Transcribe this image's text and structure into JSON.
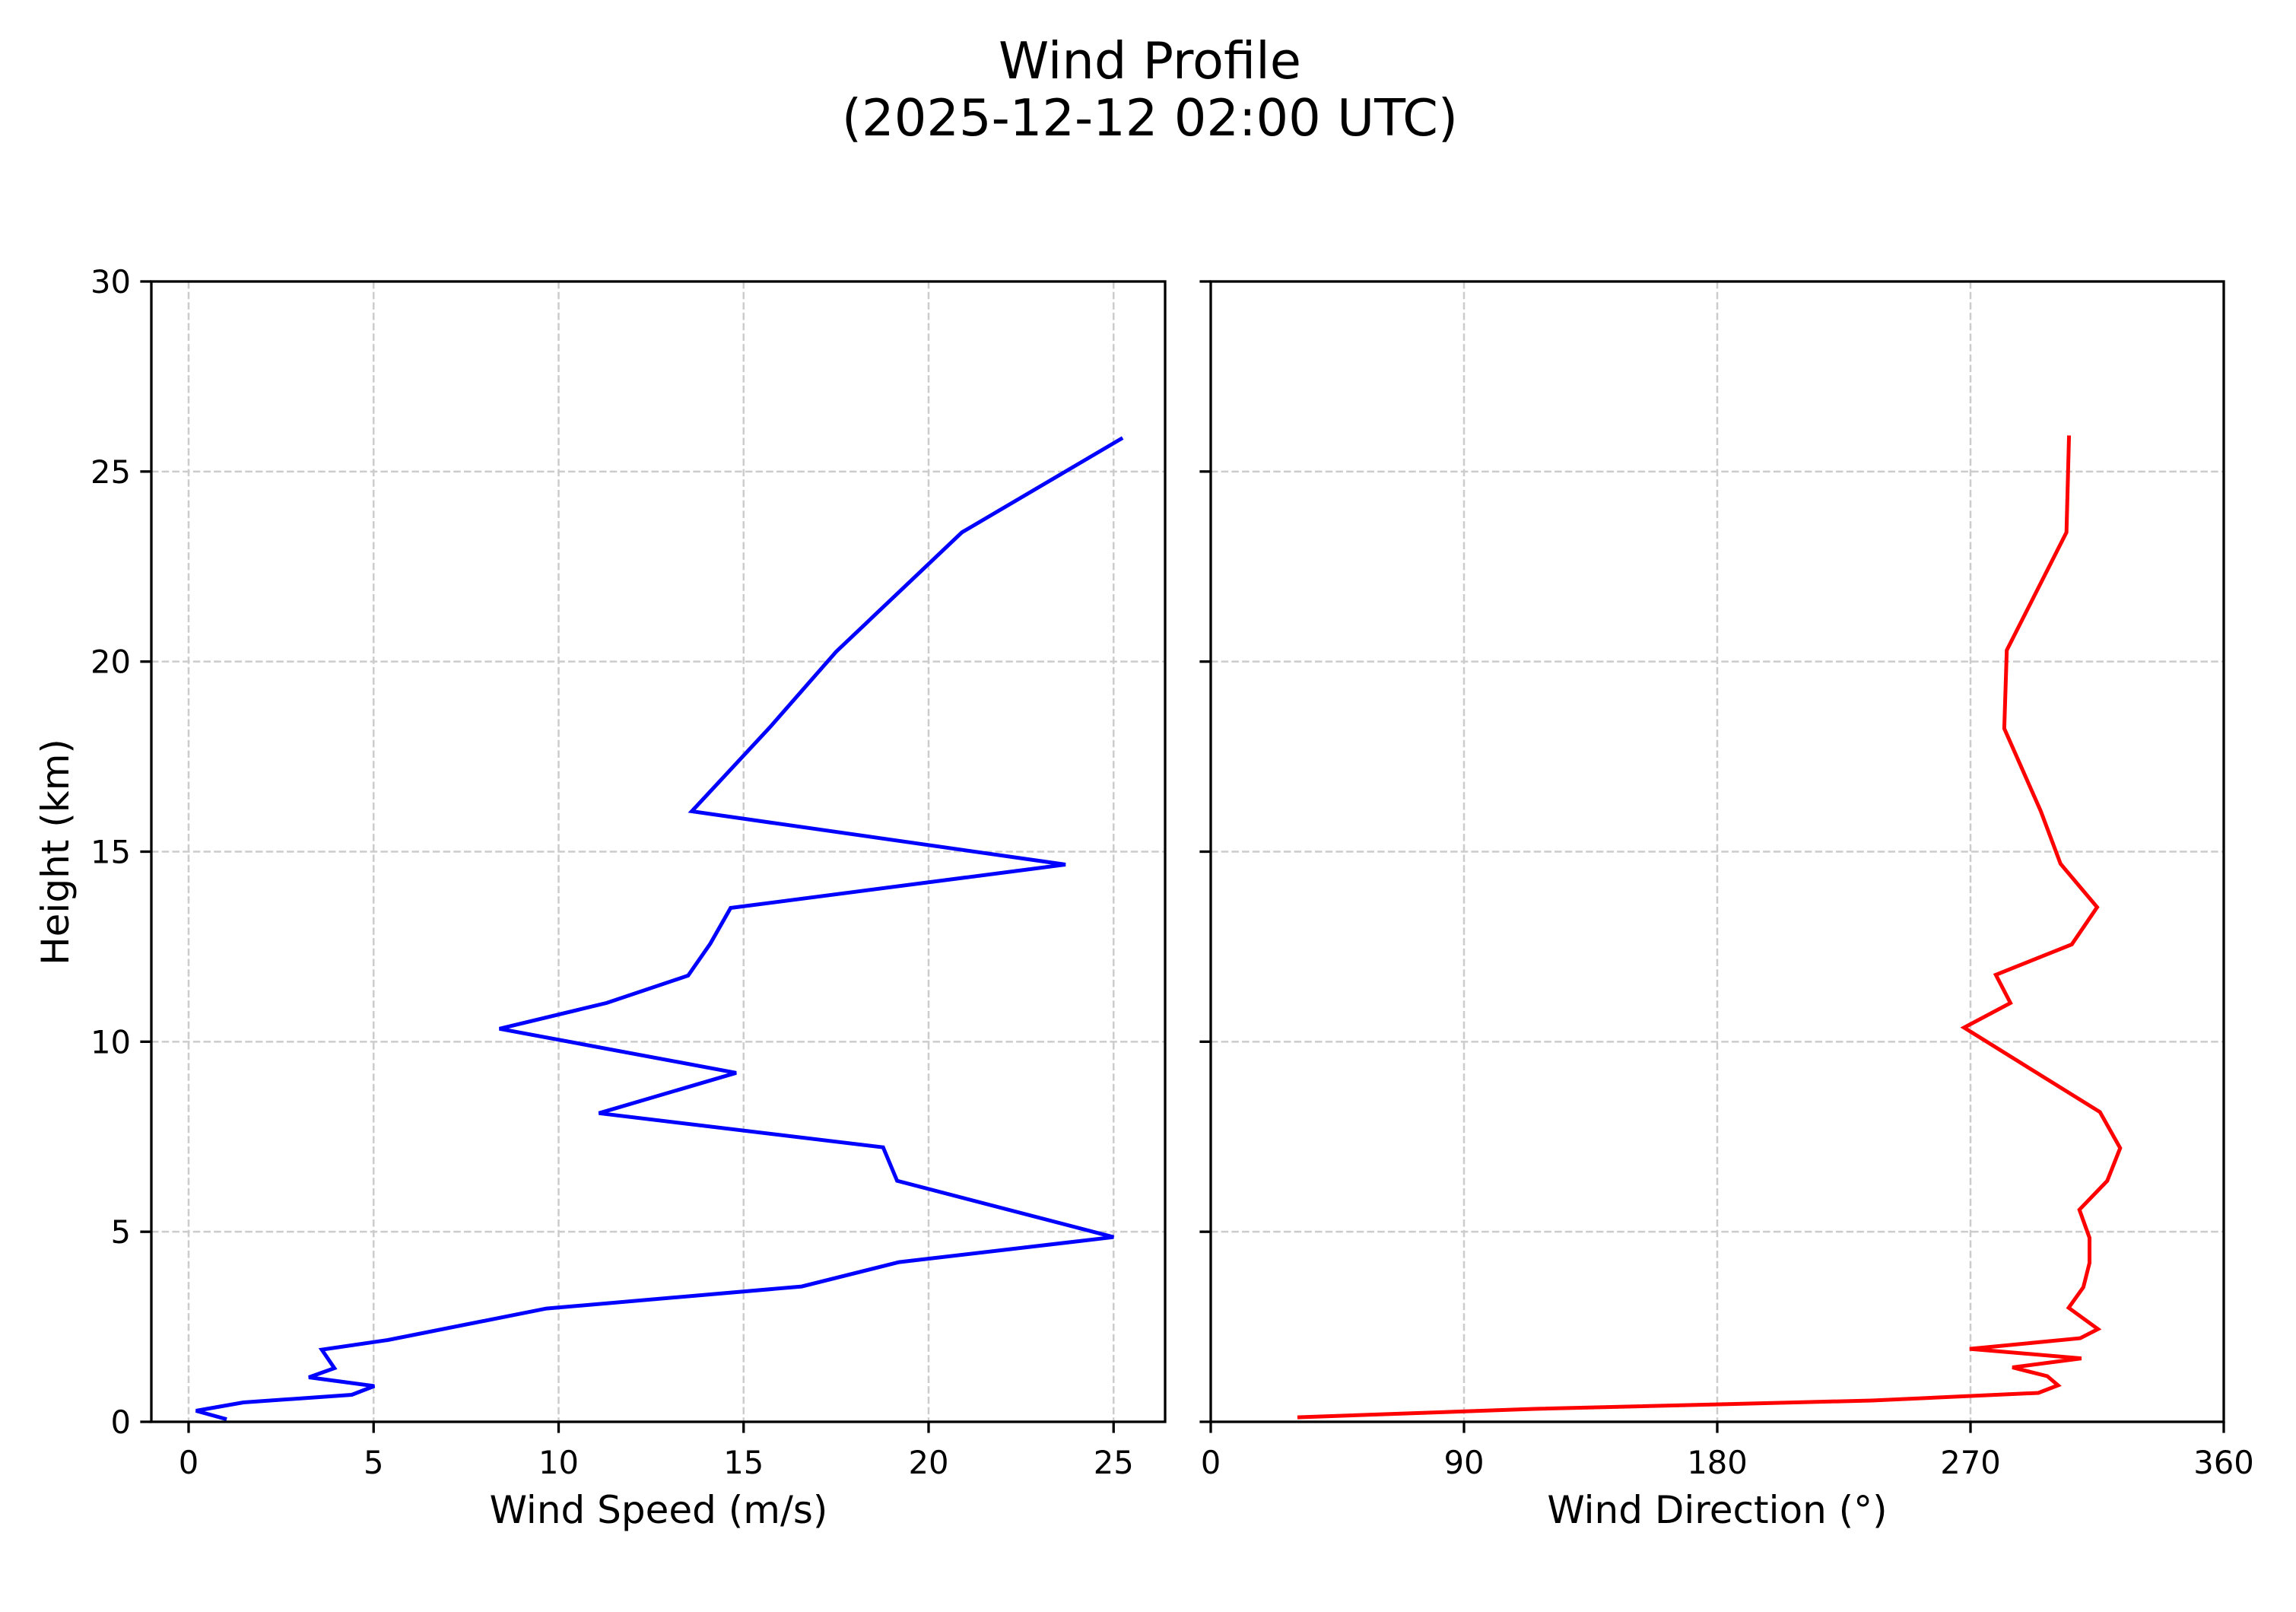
{
  "figure": {
    "title_line1": "Wind Profile",
    "title_line2": "(2025-12-12 02:00 UTC)"
  },
  "panels": {
    "speed": {
      "xlabel": "Wind Speed (m/s)",
      "ylabel": "Height (km)",
      "line_color": "#0000ff"
    },
    "direction": {
      "xlabel": "Wind Direction (°)",
      "line_color": "#ff0000"
    }
  },
  "chart_data": [
    {
      "type": "line",
      "title": "Wind Profile (2025-12-12 02:00 UTC)",
      "panel": "left",
      "xlabel": "Wind Speed (m/s)",
      "ylabel": "Height (km)",
      "xlim": [
        -1.0,
        26.4
      ],
      "ylim": [
        0,
        30
      ],
      "xticks": [
        0,
        5,
        10,
        15,
        20,
        25
      ],
      "yticks": [
        0,
        5,
        10,
        15,
        20,
        25,
        30
      ],
      "grid": true,
      "series": [
        {
          "name": "Wind Speed",
          "color": "#0000ff",
          "x": [
            0.98,
            0.2,
            1.48,
            4.41,
            5.02,
            3.25,
            3.94,
            3.6,
            5.37,
            9.67,
            16.57,
            19.2,
            25.0,
            19.15,
            18.77,
            11.09,
            14.8,
            8.4,
            11.3,
            13.5,
            14.1,
            14.65,
            23.7,
            13.6,
            15.7,
            17.5,
            20.9,
            25.2
          ],
          "y": [
            0.08,
            0.29,
            0.51,
            0.71,
            0.94,
            1.17,
            1.41,
            1.9,
            2.15,
            2.98,
            3.56,
            4.2,
            4.86,
            6.34,
            7.22,
            8.12,
            9.18,
            10.34,
            11.02,
            11.74,
            12.58,
            13.52,
            14.66,
            16.06,
            18.26,
            20.26,
            23.4,
            25.86
          ]
        }
      ]
    },
    {
      "type": "line",
      "panel": "right",
      "xlabel": "Wind Direction (°)",
      "xlim": [
        0,
        360
      ],
      "ylim": [
        0,
        30
      ],
      "xticks": [
        0,
        90,
        180,
        270,
        360
      ],
      "yticks": [
        0,
        5,
        10,
        15,
        20,
        25,
        30
      ],
      "ytick_labels_visible": false,
      "grid": true,
      "series": [
        {
          "name": "Wind Direction",
          "color": "#ff0000",
          "x": [
            31.5,
            115,
            235,
            294.1,
            301.1,
            297.3,
            284.9,
            309.4,
            269.7,
            309.0,
            315.3,
            304.9,
            310.1,
            312.3,
            312.3,
            308.7,
            318.6,
            323.2,
            316.0,
            267.7,
            284.2,
            279.0,
            306.0,
            315.0,
            302.0,
            295.0,
            282.0,
            282.9,
            304.1,
            305.0
          ],
          "y": [
            0.12,
            0.34,
            0.56,
            0.76,
            0.96,
            1.2,
            1.43,
            1.67,
            1.92,
            2.2,
            2.44,
            3.0,
            3.54,
            4.18,
            4.84,
            5.58,
            6.34,
            7.2,
            8.15,
            10.37,
            11.02,
            11.76,
            12.56,
            13.54,
            14.68,
            16.06,
            18.24,
            20.3,
            23.4,
            25.9
          ]
        }
      ]
    }
  ]
}
